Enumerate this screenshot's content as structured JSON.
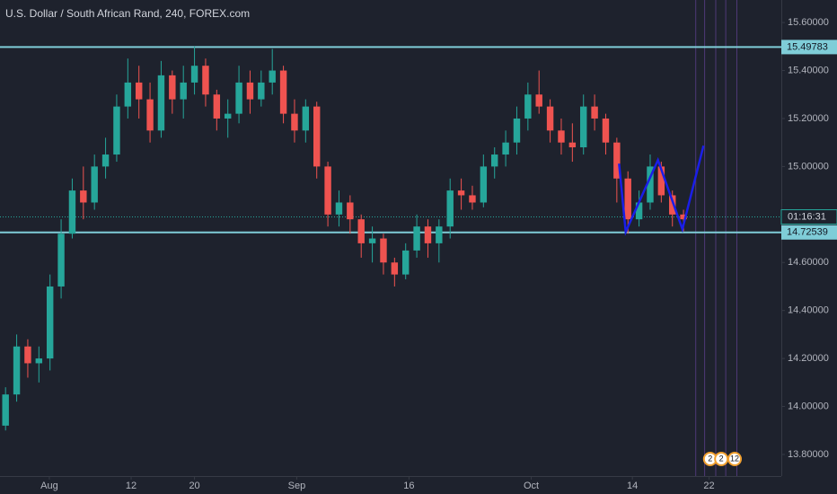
{
  "chart_data": {
    "type": "candlestick",
    "title": "U.S. Dollar / South African Rand, 240, FOREX.com",
    "x": [
      0.5,
      1.5,
      2.5,
      3.5,
      4.5,
      5.5,
      6.5,
      7.5,
      8.5,
      9.5,
      10.5,
      11.5,
      12.5,
      13.5,
      14.5,
      15.5,
      16.5,
      17.5,
      18.5,
      19.5,
      20.5,
      21.5,
      22.5,
      23.5,
      24.5,
      25.5,
      26.5,
      27.5,
      28.5,
      29.5,
      30.5,
      31.5,
      32.5,
      33.5,
      34.5,
      35.5,
      36.5,
      37.5,
      38.5,
      39.5,
      40.5,
      41.5,
      42.5,
      43.5,
      44.5,
      45.5,
      46.5,
      47.5,
      48.5,
      49.5,
      50.5,
      51.5,
      52.5,
      53.5,
      54.5,
      55.5,
      56.5,
      57.5,
      58.5,
      59.5,
      60.5,
      61.5
    ],
    "open": [
      13.92,
      14.05,
      14.25,
      14.18,
      14.2,
      14.5,
      14.72,
      14.9,
      14.85,
      15.0,
      15.05,
      15.25,
      15.35,
      15.28,
      15.15,
      15.38,
      15.28,
      15.35,
      15.42,
      15.3,
      15.2,
      15.22,
      15.35,
      15.28,
      15.35,
      15.4,
      15.22,
      15.15,
      15.25,
      15.0,
      14.8,
      14.85,
      14.78,
      14.68,
      14.7,
      14.6,
      14.55,
      14.65,
      14.75,
      14.68,
      14.75,
      14.9,
      14.88,
      14.85,
      15.0,
      15.05,
      15.1,
      15.2,
      15.3,
      15.25,
      15.15,
      15.1,
      15.08,
      15.25,
      15.2,
      15.1,
      14.95,
      14.78,
      14.85,
      15.0,
      14.88,
      14.8
    ],
    "high": [
      14.08,
      14.3,
      14.28,
      14.25,
      14.55,
      14.78,
      14.95,
      15.0,
      15.05,
      15.12,
      15.3,
      15.45,
      15.42,
      15.35,
      15.44,
      15.4,
      15.42,
      15.5,
      15.45,
      15.32,
      15.28,
      15.42,
      15.4,
      15.4,
      15.49,
      15.42,
      15.28,
      15.28,
      15.27,
      15.02,
      14.9,
      14.88,
      14.8,
      14.75,
      14.72,
      14.62,
      14.68,
      14.8,
      14.78,
      14.78,
      14.95,
      14.95,
      14.92,
      15.05,
      15.08,
      15.15,
      15.25,
      15.35,
      15.4,
      15.28,
      15.2,
      15.18,
      15.3,
      15.3,
      15.22,
      15.12,
      14.98,
      14.9,
      15.05,
      15.02,
      14.9,
      14.82
    ],
    "low": [
      13.9,
      14.02,
      14.12,
      14.1,
      14.15,
      14.45,
      14.7,
      14.78,
      14.82,
      14.95,
      15.02,
      15.2,
      15.2,
      15.1,
      15.12,
      15.22,
      15.2,
      15.3,
      15.25,
      15.15,
      15.12,
      15.18,
      15.22,
      15.25,
      15.3,
      15.18,
      15.1,
      15.1,
      14.95,
      14.75,
      14.75,
      14.72,
      14.62,
      14.6,
      14.55,
      14.5,
      14.53,
      14.62,
      14.62,
      14.6,
      14.7,
      14.82,
      14.82,
      14.83,
      14.95,
      15.0,
      15.05,
      15.15,
      15.22,
      15.1,
      15.05,
      15.02,
      15.05,
      15.15,
      15.05,
      14.85,
      14.72,
      14.75,
      14.82,
      14.85,
      14.75,
      14.73
    ],
    "close": [
      14.05,
      14.25,
      14.18,
      14.2,
      14.5,
      14.72,
      14.9,
      14.85,
      15.0,
      15.05,
      15.25,
      15.35,
      15.28,
      15.15,
      15.38,
      15.28,
      15.35,
      15.42,
      15.3,
      15.2,
      15.22,
      15.35,
      15.28,
      15.35,
      15.4,
      15.22,
      15.15,
      15.25,
      15.0,
      14.8,
      14.85,
      14.78,
      14.68,
      14.7,
      14.6,
      14.55,
      14.65,
      14.75,
      14.68,
      14.75,
      14.9,
      14.88,
      14.85,
      15.0,
      15.05,
      15.1,
      15.2,
      15.3,
      15.25,
      15.15,
      15.1,
      15.08,
      15.25,
      15.2,
      15.1,
      14.95,
      14.78,
      14.85,
      15.0,
      14.88,
      14.8,
      14.78
    ],
    "up_color": "#26a69a",
    "down_color": "#ef5350",
    "xlim": [
      0,
      70.3
    ],
    "xticks": [
      {
        "value": 4.44,
        "label": "Aug"
      },
      {
        "value": 11.8,
        "label": "12"
      },
      {
        "value": 17.5,
        "label": "20"
      },
      {
        "value": 26.7,
        "label": "Sep"
      },
      {
        "value": 36.8,
        "label": "16"
      },
      {
        "value": 47.8,
        "label": "Oct"
      },
      {
        "value": 56.9,
        "label": "14"
      },
      {
        "value": 63.8,
        "label": "22"
      }
    ],
    "ylim": [
      13.71,
      15.694
    ],
    "yticks": [
      {
        "value": 15.6,
        "label": "15.60000"
      },
      {
        "value": 15.4,
        "label": "15.40000"
      },
      {
        "value": 15.2,
        "label": "15.20000"
      },
      {
        "value": 15.0,
        "label": "15.00000"
      },
      {
        "value": 14.6,
        "label": "14.60000"
      },
      {
        "value": 14.4,
        "label": "14.40000"
      },
      {
        "value": 14.2,
        "label": "14.20000"
      },
      {
        "value": 14.0,
        "label": "14.00000"
      },
      {
        "value": 13.8,
        "label": "13.80000"
      }
    ],
    "grid": false,
    "hlines": [
      {
        "value": 15.49783,
        "label": "15.49783"
      },
      {
        "value": 14.72539,
        "label": "14.72539"
      }
    ],
    "hline_color": "#7fcdd8",
    "current_price": {
      "value": 14.79,
      "label": "01:16:31"
    },
    "drawing": {
      "color": "#1a1ee8",
      "x": [
        55.7,
        56.3,
        59.2,
        61.4,
        63.3
      ],
      "y": [
        15.012,
        14.728,
        15.027,
        14.739,
        15.087
      ]
    },
    "event_lines": [
      62.6,
      63.4,
      64.4,
      65.3,
      66.3
    ],
    "events": [
      {
        "x": 63.9,
        "label": "2"
      },
      {
        "x": 64.9,
        "label": "2"
      },
      {
        "x": 66.1,
        "label": "12"
      }
    ]
  }
}
